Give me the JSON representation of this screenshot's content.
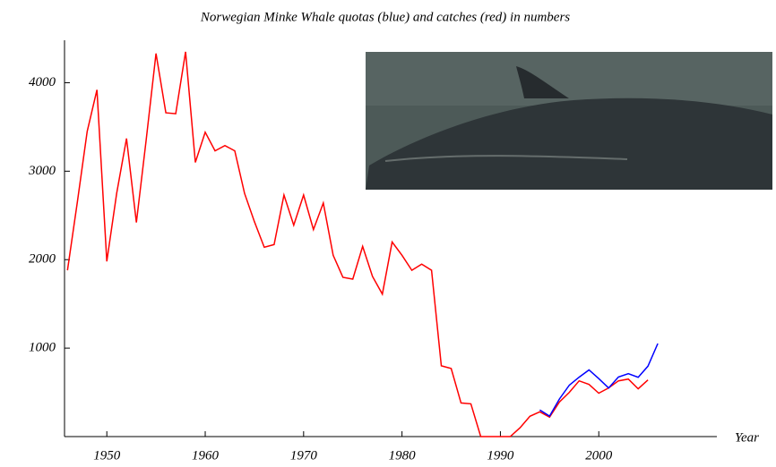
{
  "chart_data": {
    "type": "line",
    "title": "Norwegian Minke Whale quotas (blue) and catches (red) in numbers",
    "x_label": "Year",
    "x": [
      1946,
      1947,
      1948,
      1949,
      1950,
      1951,
      1952,
      1953,
      1954,
      1955,
      1956,
      1957,
      1958,
      1959,
      1960,
      1961,
      1962,
      1963,
      1964,
      1965,
      1966,
      1967,
      1968,
      1969,
      1970,
      1971,
      1972,
      1973,
      1974,
      1975,
      1976,
      1977,
      1978,
      1979,
      1980,
      1981,
      1982,
      1983,
      1984,
      1985,
      1986,
      1987,
      1988,
      1989,
      1990,
      1991,
      1992,
      1993,
      1994,
      1995,
      1996,
      1997,
      1998,
      1999,
      2000,
      2001,
      2002,
      2003,
      2004,
      2005,
      2006
    ],
    "series": [
      {
        "name": "catches",
        "color": "#ff0000",
        "values": [
          1880,
          2650,
          3450,
          3920,
          1980,
          2750,
          3370,
          2420,
          3350,
          4330,
          3660,
          3650,
          4350,
          3100,
          3440,
          3230,
          3290,
          3230,
          2750,
          2430,
          2140,
          2170,
          2730,
          2390,
          2730,
          2340,
          2640,
          2050,
          1800,
          1780,
          2150,
          1810,
          1610,
          2200,
          2050,
          1880,
          1950,
          1880,
          800,
          770,
          380,
          370,
          0,
          0,
          0,
          0,
          100,
          230,
          280,
          220,
          390,
          500,
          630,
          590,
          490,
          550,
          630,
          650,
          540,
          640,
          null
        ]
      },
      {
        "name": "quotas",
        "color": "#0000ff",
        "values": [
          null,
          null,
          null,
          null,
          null,
          null,
          null,
          null,
          null,
          null,
          null,
          null,
          null,
          null,
          null,
          null,
          null,
          null,
          null,
          null,
          null,
          null,
          null,
          null,
          null,
          null,
          null,
          null,
          null,
          null,
          null,
          null,
          null,
          null,
          null,
          null,
          null,
          null,
          null,
          null,
          null,
          null,
          null,
          null,
          null,
          null,
          null,
          null,
          301,
          232,
          425,
          580,
          671,
          753,
          655,
          549,
          674,
          711,
          670,
          796,
          1052
        ]
      }
    ],
    "xlim": [
      1945.7,
      2012
    ],
    "ylim": [
      0,
      4480
    ],
    "xticks": [
      1950,
      1960,
      1970,
      1980,
      1990,
      2000
    ],
    "yticks": [
      1000,
      2000,
      3000,
      4000
    ]
  }
}
